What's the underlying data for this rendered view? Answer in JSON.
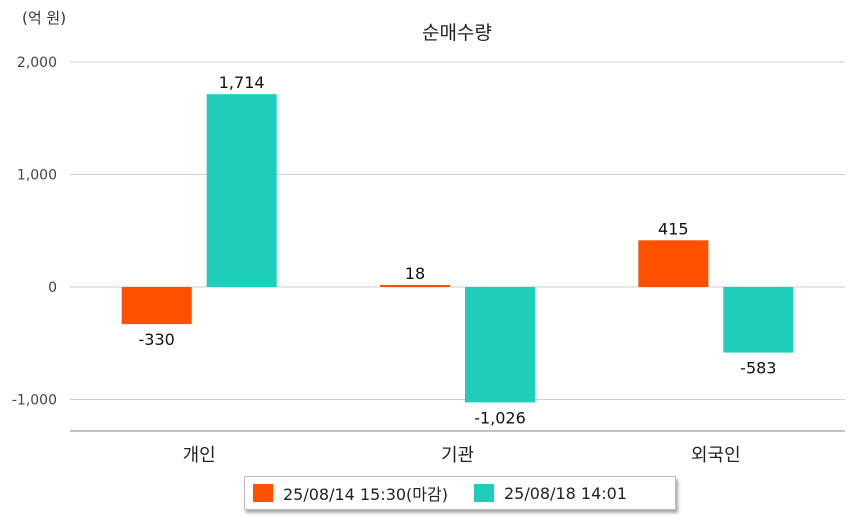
{
  "chart_data": {
    "type": "bar",
    "title": "순매수량",
    "unit_label": "(억 원)",
    "categories": [
      "개인",
      "기관",
      "외국인"
    ],
    "series": [
      {
        "name": "25/08/14 15:30(마감)",
        "color": "#FF5000",
        "values": [
          -330,
          18,
          415
        ],
        "labels": [
          "-330",
          "18",
          "415"
        ]
      },
      {
        "name": "25/08/18 14:01",
        "color": "#1ECEBB",
        "values": [
          1714,
          -1026,
          -583
        ],
        "labels": [
          "1,714",
          "-1,026",
          "-583"
        ]
      }
    ],
    "ylim": [
      -1280,
      2000
    ],
    "yticks": [
      2000,
      1000,
      0,
      -1000
    ],
    "ytick_labels": [
      "2,000",
      "1,000",
      "0",
      "-1,000"
    ],
    "grid": true,
    "legend_position": "bottom"
  }
}
